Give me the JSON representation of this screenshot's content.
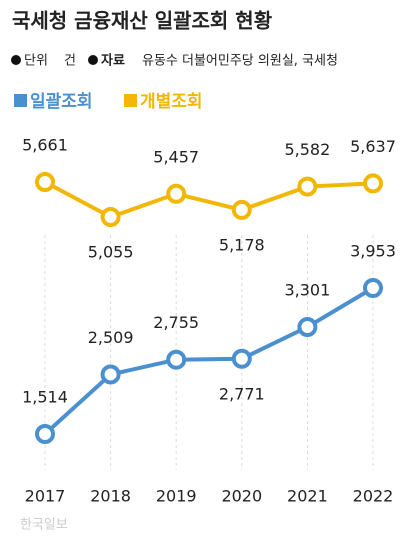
{
  "chart_data": {
    "type": "line",
    "title": "국세청 금융재산 일괄조회 현황",
    "notes": [
      {
        "label": "단위",
        "text": "건"
      },
      {
        "label": "자료",
        "text": "유동수 더불어민주당 의원실, 국세청"
      }
    ],
    "categories": [
      "2017",
      "2018",
      "2019",
      "2020",
      "2021",
      "2022"
    ],
    "series": [
      {
        "name": "일괄조회",
        "color": "#4a90d0",
        "values": [
          1514,
          2509,
          2755,
          2771,
          3301,
          3953
        ],
        "value_labels": [
          "1,514",
          "2,509",
          "2,755",
          "2,771",
          "3,301",
          "3,953"
        ]
      },
      {
        "name": "개별조회",
        "color": "#f2b705",
        "values": [
          5661,
          5055,
          5457,
          5178,
          5582,
          5637
        ],
        "value_labels": [
          "5,661",
          "5,055",
          "5,457",
          "5,178",
          "5,582",
          "5,637"
        ]
      }
    ],
    "watermark": "한국일보"
  }
}
